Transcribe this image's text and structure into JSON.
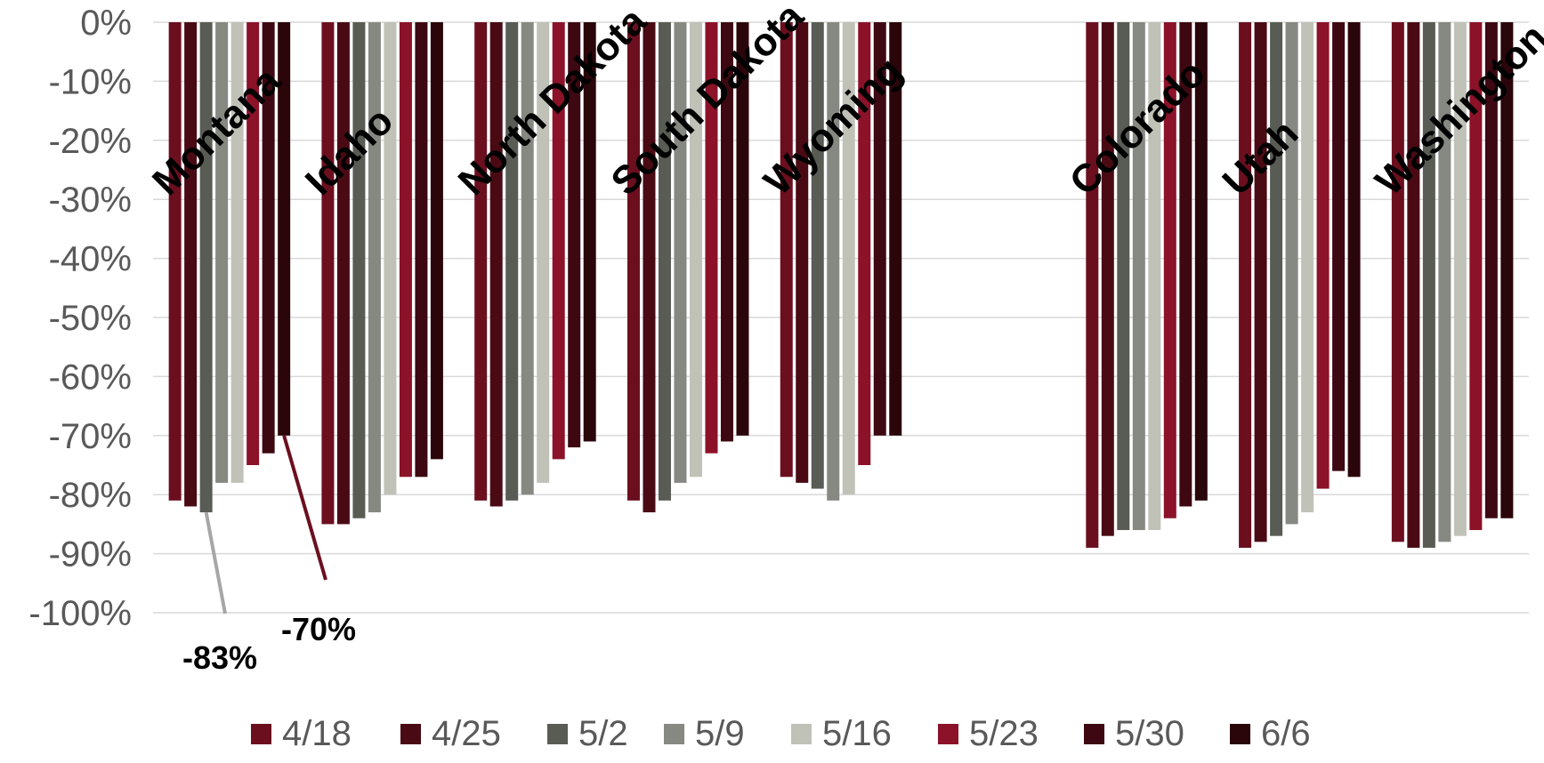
{
  "chart_data": {
    "type": "bar",
    "title": "",
    "xlabel": "",
    "ylabel": "",
    "ylim": [
      -100,
      0
    ],
    "yticks": [
      0,
      -10,
      -20,
      -30,
      -40,
      -50,
      -60,
      -70,
      -80,
      -90,
      -100
    ],
    "ytick_labels": [
      "0%",
      "-10%",
      "-20%",
      "-30%",
      "-40%",
      "-50%",
      "-60%",
      "-70%",
      "-80%",
      "-90%",
      "-100%"
    ],
    "grid": true,
    "legend_position": "bottom",
    "categories": [
      "Montana",
      "Idaho",
      "North Dakota",
      "South Dakota",
      "Wyoming",
      "",
      "Colorado",
      "Utah",
      "Washington"
    ],
    "series": [
      {
        "name": "4/18",
        "color": "#6b0f1f",
        "values": [
          -81,
          -85,
          -81,
          -81,
          -77,
          null,
          -89,
          -89,
          -88
        ]
      },
      {
        "name": "4/25",
        "color": "#4a0a14",
        "values": [
          -82,
          -85,
          -82,
          -83,
          -78,
          null,
          -87,
          -88,
          -89
        ]
      },
      {
        "name": "5/2",
        "color": "#595b55",
        "values": [
          -83,
          -84,
          -81,
          -81,
          -79,
          null,
          -86,
          -87,
          -89
        ]
      },
      {
        "name": "5/9",
        "color": "#868882",
        "values": [
          -78,
          -83,
          -80,
          -78,
          -81,
          null,
          -86,
          -85,
          -88
        ]
      },
      {
        "name": "5/16",
        "color": "#c0c2b8",
        "values": [
          -78,
          -80,
          -78,
          -77,
          -80,
          null,
          -86,
          -83,
          -87
        ]
      },
      {
        "name": "5/23",
        "color": "#8b1228",
        "values": [
          -75,
          -77,
          -74,
          -73,
          -75,
          null,
          -84,
          -79,
          -86
        ]
      },
      {
        "name": "5/30",
        "color": "#3d0812",
        "values": [
          -73,
          -77,
          -72,
          -71,
          -70,
          null,
          -82,
          -76,
          -84
        ]
      },
      {
        "name": "6/6",
        "color": "#2a0509",
        "values": [
          -70,
          -74,
          -71,
          -70,
          -70,
          null,
          -81,
          -77,
          -84
        ]
      }
    ],
    "annotations": [
      {
        "text": "-83%",
        "category": "Montana",
        "series": "5/2",
        "value": -83
      },
      {
        "text": "-70%",
        "category": "Montana",
        "series": "6/6",
        "value": -70
      }
    ]
  }
}
